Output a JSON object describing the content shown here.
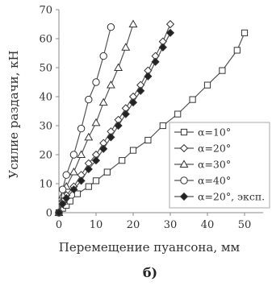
{
  "chart_data": {
    "type": "line",
    "xlabel": "Перемещение пуансона, мм",
    "ylabel": "Усилие раздачи, кН",
    "xlim": [
      0,
      55
    ],
    "ylim": [
      0,
      70
    ],
    "xticks": [
      0,
      10,
      20,
      30,
      40,
      50
    ],
    "yticks": [
      0,
      10,
      20,
      30,
      40,
      50,
      60,
      70
    ],
    "grid": false,
    "legend_position": "right",
    "caption": "б)",
    "series": [
      {
        "name": "α=10°",
        "marker": "square",
        "fill": "open",
        "x": [
          0,
          1,
          2,
          3,
          5,
          8,
          10,
          13,
          17,
          20,
          24,
          28,
          32,
          36,
          40,
          44,
          48,
          50
        ],
        "y": [
          0,
          1.5,
          2.5,
          4,
          6.5,
          9,
          11,
          14,
          18,
          21.5,
          25,
          30,
          34,
          39,
          44,
          49,
          56,
          62
        ]
      },
      {
        "name": "α=20°",
        "marker": "diamond",
        "fill": "open",
        "x": [
          0,
          1,
          2,
          4,
          6,
          8,
          10,
          12,
          14,
          16,
          18,
          20,
          22,
          24,
          26,
          28,
          30
        ],
        "y": [
          0,
          4,
          6,
          9,
          13,
          17,
          20,
          24,
          28,
          32,
          36,
          40,
          44,
          49,
          54,
          59,
          65
        ]
      },
      {
        "name": "α=30°",
        "marker": "triangle",
        "fill": "open",
        "x": [
          0,
          1,
          2,
          4,
          6,
          8,
          10,
          12,
          14,
          16,
          18,
          20
        ],
        "y": [
          0,
          6,
          9,
          14,
          20,
          26,
          31,
          38,
          44,
          50,
          57,
          65
        ]
      },
      {
        "name": "α=40°",
        "marker": "circle",
        "fill": "open",
        "x": [
          0,
          1,
          2,
          4,
          6,
          8,
          10,
          12,
          14
        ],
        "y": [
          0,
          8,
          13,
          20,
          29,
          39,
          45,
          54,
          64
        ]
      },
      {
        "name": "α=20°, эксп.",
        "marker": "diamond",
        "fill": "filled",
        "x": [
          0,
          1,
          2,
          4,
          6,
          8,
          10,
          12,
          14,
          16,
          18,
          20,
          22,
          24,
          26,
          28,
          30
        ],
        "y": [
          0,
          3,
          5,
          8,
          11,
          15,
          18,
          22,
          26,
          30,
          34,
          38,
          42,
          47,
          52,
          57,
          62
        ]
      }
    ]
  },
  "colors": {
    "line": "#555555",
    "text": "#333333",
    "axis": "#888888"
  }
}
